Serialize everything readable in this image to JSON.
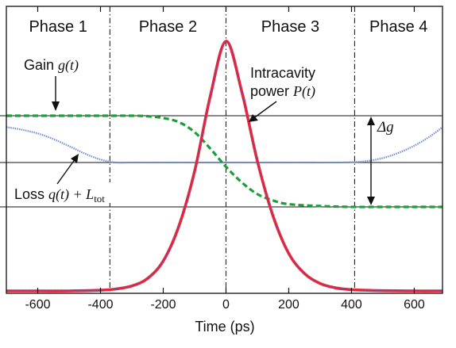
{
  "chart_data": {
    "type": "line",
    "xlabel": "Time (ps)",
    "xlim": [
      -700,
      690
    ],
    "x_ticks": [
      "-600",
      "-400",
      "-200",
      "0",
      "200",
      "400",
      "600"
    ],
    "x_tick_values": [
      -600,
      -400,
      -200,
      0,
      200,
      400,
      600
    ],
    "phases": [
      {
        "label": "Phase 1",
        "start": -700,
        "end": -370
      },
      {
        "label": "Phase 2",
        "start": -370,
        "end": 0
      },
      {
        "label": "Phase 3",
        "start": 0,
        "end": 410
      },
      {
        "label": "Phase 4",
        "start": 410,
        "end": 690
      }
    ],
    "annotations": {
      "gain": {
        "text": "Gain ",
        "math": "g(t)"
      },
      "power": {
        "line1": "Intracavity",
        "line2": "power ",
        "math": "P(t)"
      },
      "loss": {
        "text": "Loss ",
        "math": "q(t) + L",
        "sub": "tot"
      },
      "delta_g": "Δg"
    },
    "series": [
      {
        "key": "power",
        "color": "#e8283a",
        "x": [
          -700,
          -600,
          -500,
          -400,
          -350,
          -300,
          -250,
          -200,
          -150,
          -100,
          -50,
          0,
          50,
          100,
          150,
          200,
          250,
          300,
          350,
          400,
          500,
          600,
          690
        ],
        "y": [
          0.0,
          0.0,
          0.0,
          0.003,
          0.008,
          0.02,
          0.05,
          0.12,
          0.26,
          0.48,
          0.78,
          1.0,
          0.8,
          0.52,
          0.3,
          0.15,
          0.07,
          0.03,
          0.012,
          0.005,
          0.001,
          0.0,
          0.0
        ]
      },
      {
        "key": "gain",
        "color": "#1e9e3a",
        "x": [
          -700,
          -600,
          -500,
          -400,
          -300,
          -250,
          -200,
          -150,
          -100,
          -50,
          0,
          50,
          100,
          150,
          200,
          300,
          400,
          500,
          600,
          690
        ],
        "y": [
          1.0,
          1.0,
          1.0,
          1.0,
          1.0,
          0.995,
          0.975,
          0.93,
          0.82,
          0.64,
          0.44,
          0.27,
          0.14,
          0.07,
          0.03,
          0.01,
          0.0,
          0.0,
          0.0,
          0.0
        ]
      },
      {
        "key": "loss",
        "color": "#6f8fd6",
        "x": [
          -700,
          -650,
          -600,
          -550,
          -500,
          -450,
          -400,
          -350,
          -300,
          -200,
          0,
          200,
          350,
          400,
          450,
          500,
          550,
          600,
          650,
          690
        ],
        "y": [
          0.95,
          0.88,
          0.78,
          0.63,
          0.44,
          0.24,
          0.08,
          0.0,
          0.0,
          0.0,
          0.0,
          0.0,
          0.0,
          0.01,
          0.04,
          0.12,
          0.26,
          0.45,
          0.7,
          0.95
        ]
      }
    ],
    "grid": false
  }
}
